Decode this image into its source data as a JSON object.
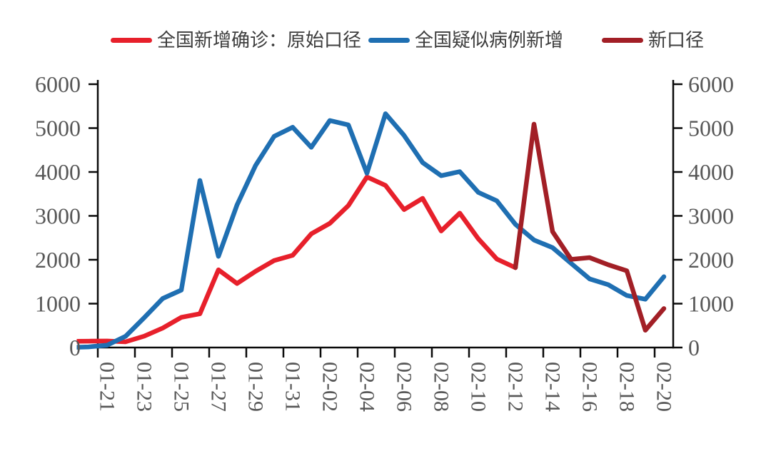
{
  "legend": [
    {
      "label": "全国新增确诊：原始口径",
      "color": "#E7202B"
    },
    {
      "label": "全国疑似病例新增",
      "color": "#1F6FB2"
    },
    {
      "label": "新口径",
      "color": "#A21F26"
    }
  ],
  "colors": {
    "axis": "#0a0a0a",
    "tick_labels": "#575757",
    "legend_text": "#3d3d3d"
  },
  "chart_data": {
    "type": "line",
    "categories": [
      "01-19",
      "01-20",
      "01-21",
      "01-22",
      "01-23",
      "01-24",
      "01-25",
      "01-26",
      "01-27",
      "01-28",
      "01-29",
      "01-30",
      "01-31",
      "02-01",
      "02-02",
      "02-03",
      "02-04",
      "02-05",
      "02-06",
      "02-07",
      "02-08",
      "02-09",
      "02-10",
      "02-11",
      "02-12",
      "02-13",
      "02-14",
      "02-15",
      "02-16",
      "02-17",
      "02-18",
      "02-19",
      "02-20"
    ],
    "x_tick_labels": [
      "01-21",
      "01-23",
      "01-25",
      "01-27",
      "01-29",
      "01-31",
      "02-02",
      "02-04",
      "02-06",
      "02-08",
      "02-10",
      "02-12",
      "02-14",
      "02-16",
      "02-18",
      "02-20"
    ],
    "series": [
      {
        "name": "全国新增确诊：原始口径",
        "color": "#E7202B",
        "values": [
          140,
          145,
          149,
          131,
          259,
          444,
          688,
          769,
          1771,
          1459,
          1737,
          1982,
          2102,
          2590,
          2829,
          3235,
          3887,
          3694,
          3143,
          3399,
          2656,
          3062,
          2478,
          2015,
          1820,
          null,
          null,
          null,
          null,
          null,
          null,
          null,
          null
        ]
      },
      {
        "name": "全国疑似病例新增",
        "color": "#1F6FB2",
        "values": [
          0,
          15,
          53,
          257,
          680,
          1118,
          1309,
          3806,
          2077,
          3248,
          4148,
          4812,
          5019,
          4562,
          5173,
          5072,
          3971,
          5328,
          4833,
          4214,
          3916,
          4008,
          3536,
          3342,
          2807,
          2450,
          2277,
          1918,
          1563,
          1432,
          1185,
          1100,
          1614
        ]
      },
      {
        "name": "新口径",
        "color": "#A21F26",
        "values": [
          null,
          null,
          null,
          null,
          null,
          null,
          null,
          null,
          null,
          null,
          null,
          null,
          null,
          null,
          null,
          null,
          null,
          null,
          null,
          null,
          null,
          null,
          null,
          null,
          1820,
          5090,
          2641,
          2009,
          2048,
          1886,
          1749,
          394,
          889
        ]
      }
    ],
    "ylim": [
      0,
      6000
    ],
    "yticks": [
      0,
      1000,
      2000,
      3000,
      4000,
      5000,
      6000
    ],
    "grid": false,
    "legend_position": "top",
    "y_axis_right": true
  }
}
